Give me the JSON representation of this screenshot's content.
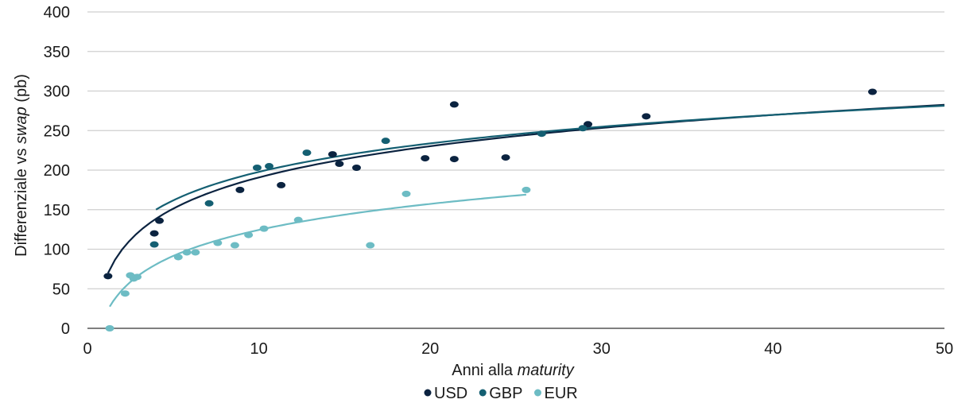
{
  "chart_data": {
    "type": "scatter",
    "title": "",
    "xlabel_parts": [
      {
        "text": "Anni alla ",
        "italic": false
      },
      {
        "text": "maturity",
        "italic": true
      }
    ],
    "ylabel_parts": [
      {
        "text": "Differenziale vs ",
        "italic": false
      },
      {
        "text": "swap",
        "italic": true
      },
      {
        "text": " (pb)",
        "italic": false
      }
    ],
    "xlim": [
      0,
      50
    ],
    "ylim": [
      0,
      400
    ],
    "xticks": [
      "0",
      "10",
      "20",
      "30",
      "40",
      "50"
    ],
    "yticks": [
      "0",
      "50",
      "100",
      "150",
      "200",
      "250",
      "300",
      "350",
      "400"
    ],
    "grid": "horizontal",
    "legend_position": "bottom",
    "series": [
      {
        "name": "USD",
        "color": "#0b2340",
        "points": [
          [
            1.2,
            66
          ],
          [
            3.9,
            120
          ],
          [
            4.2,
            136
          ],
          [
            8.9,
            175
          ],
          [
            11.3,
            181
          ],
          [
            14.3,
            220
          ],
          [
            14.7,
            208
          ],
          [
            15.7,
            203
          ],
          [
            19.7,
            215
          ],
          [
            21.4,
            283
          ],
          [
            21.4,
            214
          ],
          [
            24.4,
            216
          ],
          [
            29.2,
            258
          ],
          [
            32.6,
            268
          ],
          [
            45.8,
            299
          ]
        ],
        "trend": {
          "a": 59.5,
          "b": 57,
          "x_range": [
            1.2,
            50
          ]
        }
      },
      {
        "name": "GBP",
        "color": "#145f72",
        "points": [
          [
            3.9,
            106
          ],
          [
            7.1,
            158
          ],
          [
            9.9,
            203
          ],
          [
            10.6,
            205
          ],
          [
            12.8,
            222
          ],
          [
            17.4,
            237
          ],
          [
            26.5,
            246
          ],
          [
            28.9,
            253
          ]
        ],
        "trend": {
          "a": 78,
          "b": 52,
          "x_range": [
            4,
            50
          ]
        }
      },
      {
        "name": "EUR",
        "color": "#6dbcc4",
        "points": [
          [
            1.3,
            0
          ],
          [
            2.2,
            44
          ],
          [
            2.5,
            67
          ],
          [
            2.7,
            63
          ],
          [
            2.9,
            65
          ],
          [
            5.3,
            90
          ],
          [
            5.8,
            96
          ],
          [
            6.3,
            96
          ],
          [
            7.6,
            108
          ],
          [
            8.6,
            105
          ],
          [
            9.4,
            118
          ],
          [
            10.3,
            126
          ],
          [
            12.3,
            137
          ],
          [
            16.5,
            105
          ],
          [
            18.6,
            170
          ],
          [
            25.6,
            175
          ]
        ],
        "trend": {
          "a": 15,
          "b": 47.5,
          "x_range": [
            1.3,
            25.6
          ]
        }
      }
    ]
  }
}
